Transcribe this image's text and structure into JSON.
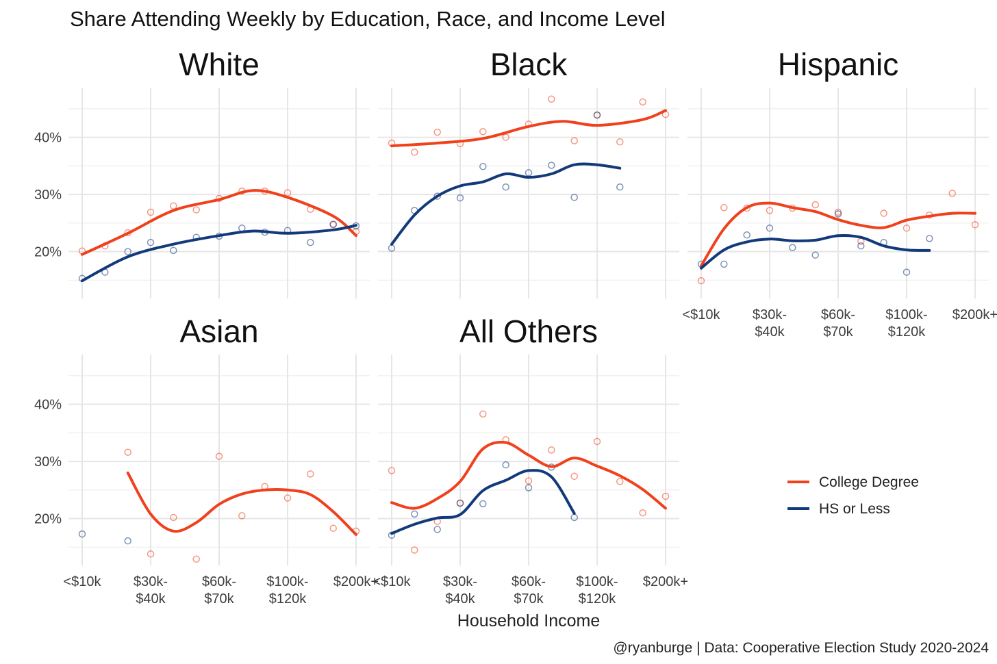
{
  "title": "Share Attending Weekly by Education, Race, and Income Level",
  "xlabel": "Household Income",
  "caption": "@ryanburge | Data: Cooperative Election Study 2020-2024",
  "colors": {
    "college": "#f0401c",
    "hs": "#123a7a",
    "grid": "#e6e6e6",
    "text": "#3c3c3c",
    "title": "#111111"
  },
  "legend": {
    "items": [
      {
        "key": "college",
        "label": "College Degree"
      },
      {
        "key": "hs",
        "label": "HS or Less"
      }
    ]
  },
  "chart_data": {
    "type": "line",
    "ylim": [
      0.118,
      0.487
    ],
    "y_ticks": [
      0.2,
      0.3,
      0.4
    ],
    "y_tick_labels": [
      "20%",
      "30%",
      "40%"
    ],
    "x_tick_positions": [
      1,
      4,
      7,
      10,
      13
    ],
    "x_tick_labels": [
      [
        "<$10k"
      ],
      [
        "$30k-",
        "$40k"
      ],
      [
        "$60k-",
        "$70k"
      ],
      [
        "$100k-",
        "$120k"
      ],
      [
        "$200k+"
      ]
    ],
    "panels": [
      {
        "title": "White",
        "series": [
          {
            "key": "college",
            "name": "College Degree",
            "points": [
              [
                1,
                0.201
              ],
              [
                2,
                0.21
              ],
              [
                3,
                0.233
              ],
              [
                4,
                0.269
              ],
              [
                5,
                0.28
              ],
              [
                6,
                0.273
              ],
              [
                7,
                0.293
              ],
              [
                8,
                0.306
              ],
              [
                9,
                0.306
              ],
              [
                10,
                0.303
              ],
              [
                11,
                0.274
              ],
              [
                12,
                0.247
              ],
              [
                13,
                0.235
              ]
            ],
            "smooth": [
              [
                1,
                0.195
              ],
              [
                3,
                0.232
              ],
              [
                5,
                0.272
              ],
              [
                7,
                0.291
              ],
              [
                8.5,
                0.307
              ],
              [
                10,
                0.295
              ],
              [
                12,
                0.262
              ],
              [
                13,
                0.228
              ]
            ]
          },
          {
            "key": "hs",
            "name": "HS or Less",
            "points": [
              [
                1,
                0.153
              ],
              [
                2,
                0.164
              ],
              [
                3,
                0.2
              ],
              [
                4,
                0.216
              ],
              [
                5,
                0.202
              ],
              [
                6,
                0.225
              ],
              [
                7,
                0.227
              ],
              [
                8,
                0.241
              ],
              [
                9,
                0.234
              ],
              [
                10,
                0.237
              ],
              [
                11,
                0.216
              ],
              [
                12,
                0.248
              ],
              [
                13,
                0.245
              ]
            ],
            "smooth": [
              [
                1,
                0.149
              ],
              [
                3,
                0.191
              ],
              [
                5,
                0.213
              ],
              [
                7,
                0.228
              ],
              [
                8.5,
                0.236
              ],
              [
                10,
                0.232
              ],
              [
                12,
                0.238
              ],
              [
                13,
                0.246
              ]
            ]
          }
        ]
      },
      {
        "title": "Black",
        "series": [
          {
            "key": "college",
            "name": "College Degree",
            "points": [
              [
                1,
                0.39
              ],
              [
                2,
                0.374
              ],
              [
                3,
                0.409
              ],
              [
                4,
                0.389
              ],
              [
                5,
                0.41
              ],
              [
                6,
                0.4
              ],
              [
                7,
                0.423
              ],
              [
                8,
                0.467
              ],
              [
                9,
                0.394
              ],
              [
                10,
                0.439
              ],
              [
                11,
                0.392
              ],
              [
                12,
                0.462
              ],
              [
                13,
                0.44
              ]
            ],
            "smooth": [
              [
                1,
                0.385
              ],
              [
                3,
                0.39
              ],
              [
                5,
                0.398
              ],
              [
                7,
                0.419
              ],
              [
                8.5,
                0.428
              ],
              [
                10,
                0.421
              ],
              [
                12,
                0.431
              ],
              [
                13,
                0.447
              ]
            ]
          },
          {
            "key": "hs",
            "name": "HS or Less",
            "points": [
              [
                1,
                0.206
              ],
              [
                2,
                0.272
              ],
              [
                3,
                0.297
              ],
              [
                4,
                0.294
              ],
              [
                5,
                0.349
              ],
              [
                6,
                0.313
              ],
              [
                7,
                0.338
              ],
              [
                8,
                0.351
              ],
              [
                9,
                0.295
              ],
              [
                10,
                0.439
              ],
              [
                11,
                0.313
              ]
            ],
            "smooth": [
              [
                1,
                0.213
              ],
              [
                2,
                0.264
              ],
              [
                3,
                0.297
              ],
              [
                4,
                0.315
              ],
              [
                5,
                0.322
              ],
              [
                6,
                0.336
              ],
              [
                7,
                0.33
              ],
              [
                8,
                0.336
              ],
              [
                9,
                0.352
              ],
              [
                10,
                0.352
              ],
              [
                11,
                0.346
              ]
            ]
          }
        ]
      },
      {
        "title": "Hispanic",
        "series": [
          {
            "key": "college",
            "name": "College Degree",
            "points": [
              [
                1,
                0.149
              ],
              [
                2,
                0.277
              ],
              [
                3,
                0.276
              ],
              [
                4,
                0.272
              ],
              [
                5,
                0.276
              ],
              [
                6,
                0.282
              ],
              [
                7,
                0.269
              ],
              [
                8,
                0.218
              ],
              [
                9,
                0.267
              ],
              [
                10,
                0.241
              ],
              [
                11,
                0.264
              ],
              [
                12,
                0.302
              ],
              [
                13,
                0.247
              ]
            ],
            "smooth": [
              [
                1,
                0.175
              ],
              [
                2,
                0.24
              ],
              [
                3,
                0.277
              ],
              [
                4,
                0.285
              ],
              [
                5,
                0.277
              ],
              [
                6,
                0.27
              ],
              [
                7,
                0.256
              ],
              [
                8,
                0.246
              ],
              [
                9,
                0.242
              ],
              [
                10,
                0.255
              ],
              [
                11,
                0.262
              ],
              [
                12,
                0.267
              ],
              [
                13,
                0.267
              ]
            ]
          },
          {
            "key": "hs",
            "name": "HS or Less",
            "points": [
              [
                1,
                0.178
              ],
              [
                2,
                0.178
              ],
              [
                3,
                0.229
              ],
              [
                4,
                0.241
              ],
              [
                5,
                0.207
              ],
              [
                6,
                0.194
              ],
              [
                7,
                0.266
              ],
              [
                8,
                0.21
              ],
              [
                9,
                0.216
              ],
              [
                10,
                0.164
              ],
              [
                11,
                0.223
              ]
            ],
            "smooth": [
              [
                1,
                0.171
              ],
              [
                2,
                0.203
              ],
              [
                3,
                0.217
              ],
              [
                4,
                0.222
              ],
              [
                5,
                0.219
              ],
              [
                6,
                0.22
              ],
              [
                7,
                0.228
              ],
              [
                8,
                0.225
              ],
              [
                9,
                0.21
              ],
              [
                10,
                0.203
              ],
              [
                11,
                0.202
              ]
            ]
          }
        ]
      },
      {
        "title": "Asian",
        "series": [
          {
            "key": "college",
            "name": "College Degree",
            "points": [
              [
                3,
                0.316
              ],
              [
                4,
                0.138
              ],
              [
                5,
                0.202
              ],
              [
                6,
                0.129
              ],
              [
                7,
                0.309
              ],
              [
                8,
                0.205
              ],
              [
                9,
                0.256
              ],
              [
                10,
                0.236
              ],
              [
                11,
                0.278
              ],
              [
                12,
                0.183
              ],
              [
                13,
                0.178
              ]
            ],
            "smooth": [
              [
                3,
                0.28
              ],
              [
                4,
                0.208
              ],
              [
                5,
                0.178
              ],
              [
                6,
                0.193
              ],
              [
                7,
                0.225
              ],
              [
                8,
                0.243
              ],
              [
                9,
                0.25
              ],
              [
                10,
                0.25
              ],
              [
                11,
                0.242
              ],
              [
                12,
                0.212
              ],
              [
                13,
                0.172
              ]
            ]
          },
          {
            "key": "hs",
            "name": "HS or Less",
            "points": [
              [
                1,
                0.173
              ],
              [
                3,
                0.161
              ]
            ],
            "smooth": []
          }
        ]
      },
      {
        "title": "All Others",
        "series": [
          {
            "key": "college",
            "name": "College Degree",
            "points": [
              [
                1,
                0.284
              ],
              [
                2,
                0.145
              ],
              [
                3,
                0.195
              ],
              [
                4,
                0.227
              ],
              [
                5,
                0.383
              ],
              [
                6,
                0.338
              ],
              [
                7,
                0.266
              ],
              [
                8,
                0.32
              ],
              [
                9,
                0.274
              ],
              [
                10,
                0.335
              ],
              [
                11,
                0.265
              ],
              [
                12,
                0.21
              ],
              [
                13,
                0.239
              ]
            ],
            "smooth": [
              [
                1,
                0.228
              ],
              [
                2,
                0.218
              ],
              [
                3,
                0.235
              ],
              [
                4,
                0.265
              ],
              [
                5,
                0.322
              ],
              [
                6,
                0.333
              ],
              [
                7,
                0.311
              ],
              [
                8,
                0.291
              ],
              [
                9,
                0.306
              ],
              [
                10,
                0.292
              ],
              [
                11,
                0.275
              ],
              [
                12,
                0.251
              ],
              [
                13,
                0.218
              ]
            ]
          },
          {
            "key": "hs",
            "name": "HS or Less",
            "points": [
              [
                1,
                0.171
              ],
              [
                2,
                0.208
              ],
              [
                3,
                0.181
              ],
              [
                4,
                0.227
              ],
              [
                5,
                0.226
              ],
              [
                6,
                0.294
              ],
              [
                7,
                0.254
              ],
              [
                8,
                0.29
              ],
              [
                9,
                0.202
              ]
            ],
            "smooth": [
              [
                1,
                0.174
              ],
              [
                2,
                0.19
              ],
              [
                3,
                0.201
              ],
              [
                4,
                0.207
              ],
              [
                5,
                0.249
              ],
              [
                6,
                0.267
              ],
              [
                7,
                0.284
              ],
              [
                8,
                0.273
              ],
              [
                9,
                0.209
              ]
            ]
          }
        ]
      }
    ]
  }
}
